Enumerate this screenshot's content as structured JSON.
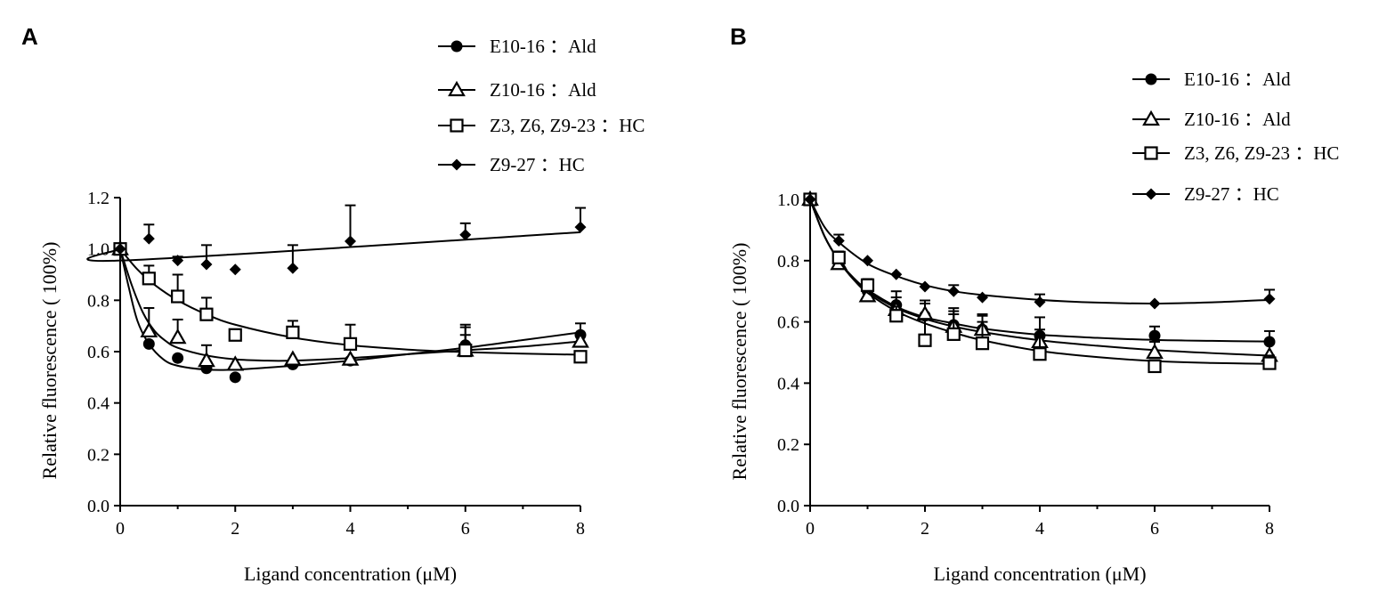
{
  "chart_data": [
    {
      "type": "scatter",
      "panel": "A",
      "xlabel": "Ligand concentration (μM)",
      "ylabel": "Relative fluorescence ( 100%)",
      "xlim": [
        0,
        8
      ],
      "ylim": [
        0,
        1.2
      ],
      "xticks": [
        "0",
        "2",
        "4",
        "6",
        "8"
      ],
      "yticks": [
        "0.0",
        "0.2",
        "0.4",
        "0.6",
        "0.8",
        "1.0",
        "1.2"
      ],
      "legend_position": "top-right",
      "series": [
        {
          "name": "E10-16 ：Ald",
          "marker": "circle",
          "x": [
            0,
            0.5,
            1,
            1.5,
            2,
            3,
            4,
            6,
            8
          ],
          "y": [
            1.0,
            0.63,
            0.575,
            0.535,
            0.5,
            0.55,
            0.565,
            0.625,
            0.665
          ],
          "err": [
            0,
            0,
            0,
            0,
            0,
            0,
            0,
            0.08,
            0.045
          ],
          "fit": [
            [
              0,
              1.0
            ],
            [
              0.15,
              0.85
            ],
            [
              0.3,
              0.72
            ],
            [
              0.5,
              0.63
            ],
            [
              0.75,
              0.57
            ],
            [
              1,
              0.545
            ],
            [
              1.5,
              0.53
            ],
            [
              2,
              0.53
            ],
            [
              3,
              0.545
            ],
            [
              4,
              0.565
            ],
            [
              5,
              0.59
            ],
            [
              6,
              0.615
            ],
            [
              7,
              0.645
            ],
            [
              8,
              0.675
            ]
          ]
        },
        {
          "name": "Z10-16 ：Ald",
          "marker": "triangle",
          "x": [
            0,
            0.5,
            1,
            1.5,
            2,
            3,
            4,
            6,
            8
          ],
          "y": [
            1.0,
            0.68,
            0.655,
            0.565,
            0.55,
            0.57,
            0.57,
            0.605,
            0.64
          ],
          "err": [
            0,
            0.09,
            0.07,
            0.06,
            0,
            0,
            0,
            0.06,
            0
          ],
          "fit": [
            [
              0,
              1.0
            ],
            [
              0.2,
              0.86
            ],
            [
              0.4,
              0.75
            ],
            [
              0.6,
              0.68
            ],
            [
              0.8,
              0.64
            ],
            [
              1,
              0.615
            ],
            [
              1.5,
              0.585
            ],
            [
              2,
              0.57
            ],
            [
              2.5,
              0.565
            ],
            [
              3,
              0.565
            ],
            [
              4,
              0.575
            ],
            [
              5,
              0.59
            ],
            [
              6,
              0.605
            ],
            [
              7,
              0.62
            ],
            [
              8,
              0.64
            ]
          ]
        },
        {
          "name": "Z3, Z6, Z9-23 ：HC",
          "marker": "square",
          "x": [
            0,
            0.5,
            1,
            1.5,
            2,
            3,
            4,
            6,
            8
          ],
          "y": [
            1.0,
            0.885,
            0.815,
            0.745,
            0.665,
            0.675,
            0.63,
            0.605,
            0.58
          ],
          "err": [
            0,
            0.05,
            0.085,
            0.065,
            0.02,
            0.045,
            0.075,
            0.09,
            0
          ],
          "fit": [
            [
              0,
              1.0
            ],
            [
              0.3,
              0.92
            ],
            [
              0.6,
              0.86
            ],
            [
              1,
              0.8
            ],
            [
              1.5,
              0.745
            ],
            [
              2,
              0.705
            ],
            [
              3,
              0.655
            ],
            [
              4,
              0.625
            ],
            [
              5,
              0.608
            ],
            [
              6,
              0.598
            ],
            [
              7,
              0.592
            ],
            [
              8,
              0.588
            ]
          ]
        },
        {
          "name": "Z9-27 ：HC",
          "marker": "diamond",
          "x": [
            0,
            0.5,
            1,
            1.5,
            2,
            3,
            4,
            6,
            8
          ],
          "y": [
            1.0,
            1.04,
            0.955,
            0.94,
            0.92,
            0.925,
            1.03,
            1.055,
            1.085
          ],
          "err": [
            0,
            0.055,
            0.015,
            0.075,
            0,
            0.09,
            0.14,
            0.045,
            0.075
          ],
          "fit": [
            [
              0,
              1.0
            ],
            [
              0.03,
              0.955
            ],
            [
              8,
              1.065
            ]
          ]
        }
      ]
    },
    {
      "type": "scatter",
      "panel": "B",
      "xlabel": "Ligand concentration (μM)",
      "ylabel": "Relative fluorescence ( 100%)",
      "xlim": [
        0,
        8
      ],
      "ylim": [
        0,
        1.0
      ],
      "xticks": [
        "0",
        "2",
        "4",
        "6",
        "8"
      ],
      "yticks": [
        "0.0",
        "0.2",
        "0.4",
        "0.6",
        "0.8",
        "1.0"
      ],
      "legend_position": "top-right",
      "series": [
        {
          "name": "E10-16 ：Ald",
          "marker": "circle",
          "x": [
            0,
            0.5,
            1,
            1.5,
            2,
            2.5,
            3,
            4,
            6,
            8
          ],
          "y": [
            1.0,
            0.8,
            0.7,
            0.655,
            0.62,
            0.59,
            0.575,
            0.555,
            0.555,
            0.535
          ],
          "err": [
            0,
            0.02,
            0.03,
            0.045,
            0.05,
            0.055,
            0.05,
            0.06,
            0.03,
            0.035
          ],
          "fit": [
            [
              0,
              1.0
            ],
            [
              0.25,
              0.88
            ],
            [
              0.5,
              0.8
            ],
            [
              0.75,
              0.745
            ],
            [
              1,
              0.705
            ],
            [
              1.5,
              0.65
            ],
            [
              2,
              0.615
            ],
            [
              2.5,
              0.595
            ],
            [
              3,
              0.578
            ],
            [
              4,
              0.558
            ],
            [
              5,
              0.548
            ],
            [
              6,
              0.541
            ],
            [
              7,
              0.538
            ],
            [
              8,
              0.536
            ]
          ]
        },
        {
          "name": "Z10-16 ：Ald",
          "marker": "triangle",
          "x": [
            0,
            0.5,
            1,
            1.5,
            2,
            2.5,
            3,
            4,
            6,
            8
          ],
          "y": [
            1.0,
            0.79,
            0.685,
            0.64,
            0.625,
            0.585,
            0.575,
            0.535,
            0.5,
            0.49
          ],
          "err": [
            0,
            0.02,
            0.025,
            0.04,
            0.035,
            0.04,
            0.045,
            0.04,
            0.035,
            0.04
          ],
          "fit": [
            [
              0,
              1.0
            ],
            [
              0.25,
              0.88
            ],
            [
              0.5,
              0.8
            ],
            [
              0.75,
              0.74
            ],
            [
              1,
              0.7
            ],
            [
              1.5,
              0.645
            ],
            [
              2,
              0.61
            ],
            [
              2.5,
              0.585
            ],
            [
              3,
              0.567
            ],
            [
              4,
              0.54
            ],
            [
              5,
              0.522
            ],
            [
              6,
              0.508
            ],
            [
              7,
              0.498
            ],
            [
              8,
              0.49
            ]
          ]
        },
        {
          "name": "Z3, Z6, Z9-23 ：HC",
          "marker": "square",
          "x": [
            0,
            0.5,
            1,
            1.5,
            2,
            2.5,
            3,
            4,
            6,
            8
          ],
          "y": [
            1.0,
            0.81,
            0.72,
            0.62,
            0.54,
            0.56,
            0.53,
            0.495,
            0.455,
            0.465
          ],
          "err": [
            0,
            0.02,
            0.02,
            0.03,
            0.07,
            0.075,
            0.07,
            0.055,
            0.02,
            0.025
          ],
          "fit": [
            [
              0,
              1.0
            ],
            [
              0.25,
              0.88
            ],
            [
              0.5,
              0.8
            ],
            [
              0.75,
              0.74
            ],
            [
              1,
              0.695
            ],
            [
              1.5,
              0.635
            ],
            [
              2,
              0.595
            ],
            [
              2.5,
              0.565
            ],
            [
              3,
              0.54
            ],
            [
              4,
              0.505
            ],
            [
              5,
              0.485
            ],
            [
              6,
              0.472
            ],
            [
              7,
              0.466
            ],
            [
              8,
              0.463
            ]
          ]
        },
        {
          "name": "Z9-27 ：HC",
          "marker": "diamond",
          "x": [
            0,
            0.5,
            1,
            1.5,
            2,
            2.5,
            3,
            4,
            6,
            8
          ],
          "y": [
            1.0,
            0.865,
            0.8,
            0.755,
            0.715,
            0.7,
            0.68,
            0.665,
            0.66,
            0.675
          ],
          "err": [
            0,
            0.02,
            0,
            0,
            0,
            0.02,
            0,
            0.025,
            0,
            0.03
          ],
          "fit": [
            [
              0,
              1.0
            ],
            [
              0.25,
              0.91
            ],
            [
              0.5,
              0.86
            ],
            [
              1,
              0.79
            ],
            [
              1.5,
              0.75
            ],
            [
              2,
              0.72
            ],
            [
              2.5,
              0.7
            ],
            [
              3,
              0.688
            ],
            [
              4,
              0.672
            ],
            [
              5,
              0.663
            ],
            [
              6,
              0.66
            ],
            [
              7,
              0.664
            ],
            [
              8,
              0.672
            ]
          ]
        }
      ]
    }
  ]
}
